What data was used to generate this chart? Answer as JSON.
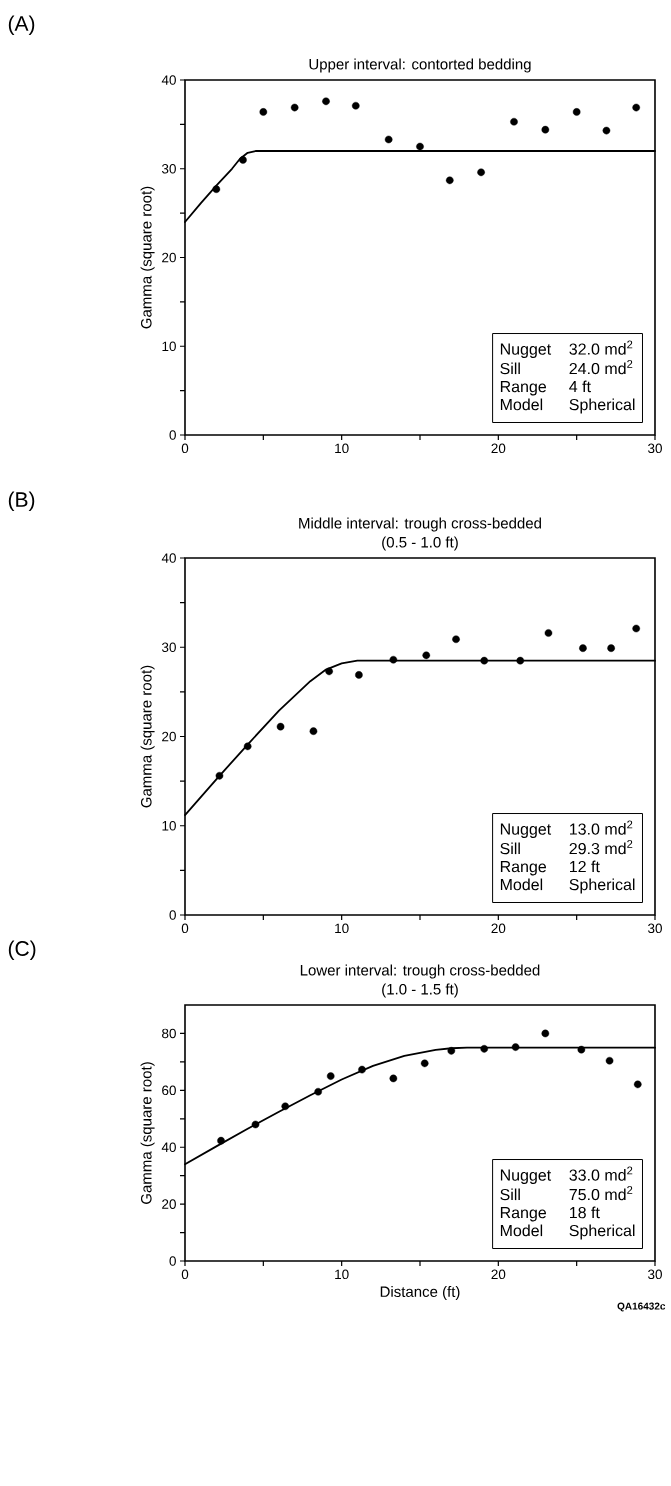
{
  "chart_data": [
    {
      "type": "scatter",
      "title": "Upper interval: contorted bedding",
      "ylabel": "Gamma (square root)",
      "xlim": [
        0,
        30
      ],
      "ylim": [
        0,
        40
      ],
      "xticks": [
        0,
        {
          "value": 5,
          "label": null
        },
        10,
        {
          "value": 15,
          "label": null
        },
        20,
        {
          "value": 25,
          "label": null
        },
        30
      ],
      "yticks": [
        0,
        {
          "value": 5,
          "label": null
        },
        10,
        {
          "value": 15,
          "label": null
        },
        20,
        {
          "value": 25,
          "label": null
        },
        30,
        {
          "value": 35,
          "label": null
        },
        40
      ],
      "grid": false,
      "series": [
        {
          "marker": "circle",
          "color": "#000000",
          "x": [
            2,
            3.7,
            5,
            7,
            9,
            10.9,
            13,
            15,
            16.9,
            18.9,
            21,
            23,
            25,
            26.9,
            28.8
          ],
          "values": [
            27.7,
            31,
            36.4,
            36.9,
            37.6,
            37.1,
            33.3,
            32.5,
            28.7,
            29.6,
            35.3,
            34.4,
            36.4,
            34.3,
            36.9
          ]
        },
        {
          "type": "line",
          "marker": "none",
          "color": "#000000",
          "x": [
            0,
            1,
            2,
            3,
            3.5,
            4,
            4.5,
            30
          ],
          "values": [
            24,
            26.1,
            28.1,
            30.0,
            31.1,
            31.8,
            32,
            32
          ]
        }
      ],
      "annotations": [
        "(A)",
        "Nugget",
        "32.0 md$^{2}$",
        "Sill",
        "24.0 md$^{2}$",
        "Range",
        "4 ft",
        "Model",
        "Spherical"
      ]
    },
    {
      "type": "scatter",
      "title": "Middle interval: trough cross-bedded",
      "subtitle": "(0.5 - 1.0 ft)",
      "ylabel": "Gamma (square root)",
      "xlim": [
        0,
        30
      ],
      "ylim": [
        0,
        40
      ],
      "xticks": [
        0,
        {
          "value": 5,
          "label": null
        },
        10,
        {
          "value": 15,
          "label": null
        },
        20,
        {
          "value": 25,
          "label": null
        },
        30
      ],
      "yticks": [
        0,
        {
          "value": 5,
          "label": null
        },
        10,
        {
          "value": 15,
          "label": null
        },
        20,
        {
          "value": 25,
          "label": null
        },
        30,
        {
          "value": 35,
          "label": null
        },
        40
      ],
      "grid": false,
      "series": [
        {
          "marker": "circle",
          "color": "#000000",
          "x": [
            2.2,
            4,
            6.1,
            8.2,
            9.2,
            11.1,
            13.3,
            15.4,
            17.3,
            19.1,
            21.4,
            23.2,
            25.4,
            27.2,
            28.8
          ],
          "values": [
            15.6,
            18.9,
            21.1,
            20.6,
            27.3,
            26.9,
            28.6,
            29.1,
            30.9,
            28.5,
            28.5,
            31.6,
            29.9,
            29.9,
            32.1
          ]
        },
        {
          "type": "line",
          "marker": "none",
          "color": "#000000",
          "x": [
            0,
            2,
            4,
            6,
            8,
            9,
            10,
            11,
            12,
            30
          ],
          "values": [
            11.2,
            15.2,
            19.1,
            22.9,
            26.2,
            27.5,
            28.2,
            28.5,
            28.5,
            28.5
          ]
        }
      ],
      "annotations": [
        "(B)",
        "Nugget",
        "13.0 md$^{2}$",
        "Sill",
        "29.3 md$^{2}$",
        "Range",
        "12 ft",
        "Model",
        "Spherical"
      ]
    },
    {
      "type": "scatter",
      "title": "Lower interval: trough cross-bedded",
      "subtitle": "(1.0 - 1.5 ft)",
      "xlabel": "Distance (ft)",
      "ylabel": "Gamma (square root)",
      "xlim": [
        0,
        30
      ],
      "ylim": [
        0,
        90
      ],
      "xticks": [
        0,
        {
          "value": 5,
          "label": null
        },
        10,
        {
          "value": 15,
          "label": null
        },
        20,
        {
          "value": 25,
          "label": null
        },
        30
      ],
      "yticks": [
        0,
        {
          "value": 10,
          "label": null
        },
        20,
        {
          "value": 30,
          "label": null
        },
        40,
        {
          "value": 50,
          "label": null
        },
        60,
        {
          "value": 70,
          "label": null
        },
        80
      ],
      "grid": false,
      "series": [
        {
          "marker": "circle",
          "color": "#000000",
          "x": [
            2.3,
            4.5,
            6.4,
            8.5,
            9.3,
            11.3,
            13.3,
            15.3,
            17,
            19.1,
            21.1,
            23,
            25.3,
            27.1,
            28.9
          ],
          "values": [
            42.3,
            48,
            54.4,
            59.5,
            65,
            67.3,
            64.2,
            69.5,
            73.9,
            74.6,
            75.2,
            80,
            74.3,
            70.4,
            62.1
          ]
        },
        {
          "type": "line",
          "marker": "none",
          "color": "#000000",
          "x": [
            0,
            2,
            4,
            6,
            8,
            10,
            12,
            14,
            16,
            17,
            18,
            30
          ],
          "values": [
            34,
            40.3,
            46.5,
            52.5,
            58.3,
            63.8,
            68.6,
            72.1,
            74.2,
            74.8,
            75,
            75
          ]
        }
      ],
      "annotations": [
        "(C)",
        "Nugget",
        "33.0 md$^{2}$",
        "Sill",
        "75.0 md$^{2}$",
        "Range",
        "18 ft",
        "Model",
        "Spherical",
        "QA16432c"
      ]
    }
  ]
}
